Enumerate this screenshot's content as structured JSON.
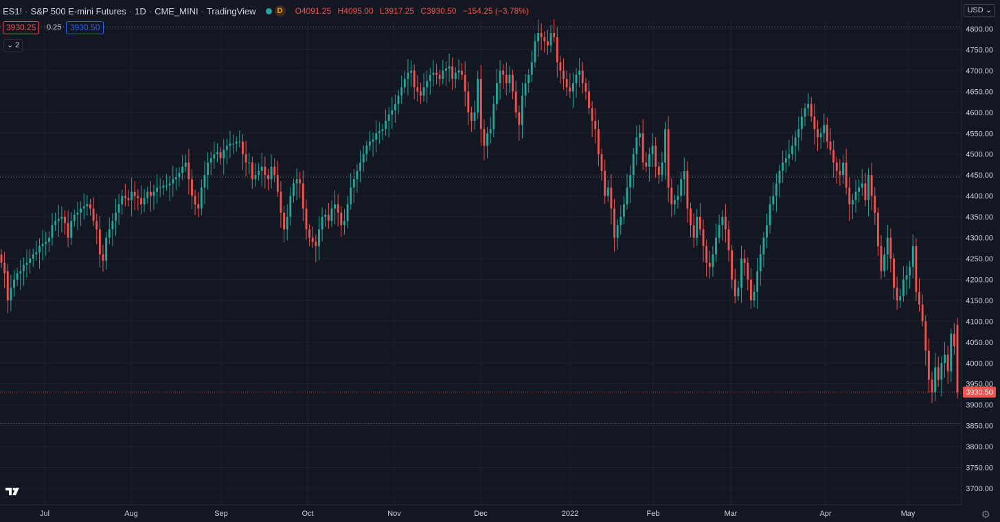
{
  "header": {
    "symbol": "ES1!",
    "name": "S&P 500 E-mini Futures",
    "interval": "1D",
    "exchange": "CME_MINI",
    "source": "TradingView",
    "badge": "D",
    "o_label": "O",
    "o_value": "4091.25",
    "h_label": "H",
    "h_value": "4095.00",
    "l_label": "L",
    "l_value": "3917.25",
    "c_label": "C",
    "c_value": "3930.50",
    "change": "−154.25 (−3.78%)"
  },
  "trade": {
    "bid": "3930.25",
    "spread": "0.25",
    "ask": "3930.50",
    "collapse_label": "2"
  },
  "axis": {
    "currency": "USD"
  },
  "colors": {
    "up": "#26a69a",
    "down": "#ef5350",
    "background": "#131722",
    "grid": "#1e222d"
  },
  "chart_data": {
    "type": "candlestick",
    "y_ticks": [
      "4800.00",
      "4750.00",
      "4700.00",
      "4650.00",
      "4600.00",
      "4550.00",
      "4500.00",
      "4450.00",
      "4400.00",
      "4350.00",
      "4300.00",
      "4250.00",
      "4200.00",
      "4150.00",
      "4100.00",
      "4050.00",
      "4000.00",
      "3950.00",
      "3900.00",
      "3850.00",
      "3800.00",
      "3750.00",
      "3700.00"
    ],
    "x_ticks": [
      "Jul",
      "Aug",
      "Sep",
      "Oct",
      "Nov",
      "Dec",
      "2022",
      "Feb",
      "Mar",
      "Apr",
      "May"
    ],
    "ylim": [
      3680,
      4815
    ],
    "last_price": "3930.50",
    "reference_levels": [
      4805,
      4445,
      3855
    ],
    "closes": [
      4240,
      4215,
      4150,
      4180,
      4200,
      4215,
      4220,
      4235,
      4240,
      4250,
      4260,
      4265,
      4280,
      4285,
      4290,
      4300,
      4330,
      4340,
      4345,
      4350,
      4335,
      4300,
      4340,
      4355,
      4360,
      4370,
      4375,
      4380,
      4370,
      4340,
      4320,
      4260,
      4245,
      4300,
      4320,
      4340,
      4360,
      4380,
      4400,
      4395,
      4390,
      4410,
      4400,
      4395,
      4380,
      4395,
      4410,
      4400,
      4410,
      4420,
      4420,
      4425,
      4425,
      4430,
      4440,
      4445,
      4455,
      4470,
      4480,
      4440,
      4400,
      4380,
      4370,
      4420,
      4450,
      4480,
      4490,
      4500,
      4505,
      4490,
      4510,
      4520,
      4525,
      4525,
      4530,
      4530,
      4500,
      4480,
      4480,
      4440,
      4450,
      4460,
      4470,
      4450,
      4440,
      4470,
      4450,
      4410,
      4360,
      4320,
      4350,
      4400,
      4430,
      4440,
      4430,
      4370,
      4320,
      4300,
      4290,
      4280,
      4320,
      4350,
      4355,
      4340,
      4370,
      4380,
      4360,
      4330,
      4340,
      4380,
      4420,
      4440,
      4460,
      4480,
      4500,
      4520,
      4530,
      4535,
      4550,
      4555,
      4560,
      4580,
      4595,
      4605,
      4620,
      4640,
      4660,
      4680,
      4695,
      4700,
      4660,
      4650,
      4640,
      4660,
      4675,
      4690,
      4695,
      4690,
      4680,
      4700,
      4705,
      4710,
      4680,
      4695,
      4700,
      4690,
      4650,
      4600,
      4580,
      4600,
      4680,
      4560,
      4520,
      4550,
      4560,
      4620,
      4670,
      4700,
      4690,
      4670,
      4690,
      4650,
      4600,
      4570,
      4640,
      4670,
      4690,
      4720,
      4770,
      4790,
      4780,
      4770,
      4760,
      4790,
      4780,
      4720,
      4700,
      4680,
      4660,
      4650,
      4670,
      4690,
      4700,
      4670,
      4650,
      4610,
      4580,
      4560,
      4500,
      4460,
      4400,
      4420,
      4370,
      4300,
      4330,
      4350,
      4380,
      4420,
      4450,
      4500,
      4540,
      4550,
      4480,
      4470,
      4500,
      4520,
      4470,
      4450,
      4480,
      4560,
      4420,
      4380,
      4390,
      4400,
      4440,
      4460,
      4370,
      4330,
      4300,
      4350,
      4320,
      4280,
      4240,
      4230,
      4260,
      4300,
      4330,
      4350,
      4320,
      4270,
      4200,
      4160,
      4180,
      4250,
      4240,
      4200,
      4150,
      4170,
      4220,
      4260,
      4300,
      4330,
      4380,
      4400,
      4430,
      4460,
      4480,
      4490,
      4500,
      4520,
      4540,
      4560,
      4590,
      4610,
      4620,
      4590,
      4560,
      4540,
      4550,
      4570,
      4530,
      4510,
      4480,
      4460,
      4450,
      4480,
      4420,
      4380,
      4390,
      4410,
      4420,
      4430,
      4390,
      4450,
      4400,
      4360,
      4280,
      4220,
      4260,
      4300,
      4250,
      4180,
      4150,
      4160,
      4200,
      4210,
      4230,
      4280,
      4170,
      4140,
      4100,
      4030,
      3960,
      3930,
      3990,
      3960,
      4000,
      4020,
      3980,
      4070,
      4040,
      3930
    ],
    "opens": [
      4260,
      4240,
      4220,
      4150,
      4180,
      4200,
      4215,
      4220,
      4235,
      4240,
      4250,
      4260,
      4265,
      4280,
      4285,
      4290,
      4300,
      4330,
      4340,
      4345,
      4350,
      4335,
      4300,
      4340,
      4355,
      4360,
      4370,
      4375,
      4380,
      4370,
      4340,
      4320,
      4260,
      4245,
      4300,
      4320,
      4340,
      4360,
      4380,
      4400,
      4395,
      4390,
      4410,
      4400,
      4395,
      4380,
      4395,
      4410,
      4400,
      4410,
      4420,
      4420,
      4425,
      4425,
      4430,
      4440,
      4445,
      4455,
      4470,
      4480,
      4440,
      4400,
      4380,
      4370,
      4420,
      4450,
      4480,
      4490,
      4500,
      4505,
      4490,
      4510,
      4520,
      4525,
      4525,
      4530,
      4530,
      4500,
      4480,
      4480,
      4440,
      4450,
      4460,
      4470,
      4450,
      4440,
      4470,
      4450,
      4410,
      4360,
      4320,
      4350,
      4400,
      4430,
      4440,
      4430,
      4370,
      4320,
      4300,
      4290,
      4280,
      4320,
      4350,
      4355,
      4340,
      4370,
      4380,
      4360,
      4330,
      4340,
      4380,
      4420,
      4440,
      4460,
      4480,
      4500,
      4520,
      4530,
      4535,
      4550,
      4555,
      4560,
      4580,
      4595,
      4605,
      4620,
      4640,
      4660,
      4680,
      4695,
      4700,
      4660,
      4650,
      4640,
      4660,
      4675,
      4690,
      4695,
      4690,
      4680,
      4700,
      4705,
      4710,
      4680,
      4695,
      4700,
      4690,
      4650,
      4600,
      4580,
      4600,
      4680,
      4560,
      4520,
      4550,
      4560,
      4620,
      4670,
      4700,
      4690,
      4670,
      4690,
      4650,
      4600,
      4570,
      4640,
      4670,
      4690,
      4720,
      4770,
      4790,
      4780,
      4770,
      4760,
      4790,
      4780,
      4720,
      4700,
      4680,
      4660,
      4650,
      4670,
      4690,
      4700,
      4670,
      4650,
      4610,
      4580,
      4560,
      4500,
      4460,
      4400,
      4420,
      4370,
      4300,
      4330,
      4350,
      4380,
      4420,
      4450,
      4500,
      4540,
      4550,
      4480,
      4470,
      4500,
      4520,
      4470,
      4450,
      4480,
      4560,
      4420,
      4380,
      4390,
      4400,
      4440,
      4460,
      4370,
      4330,
      4300,
      4350,
      4320,
      4280,
      4240,
      4230,
      4260,
      4300,
      4330,
      4350,
      4320,
      4270,
      4200,
      4160,
      4180,
      4250,
      4240,
      4200,
      4150,
      4170,
      4220,
      4260,
      4300,
      4330,
      4380,
      4400,
      4430,
      4460,
      4480,
      4490,
      4500,
      4520,
      4540,
      4560,
      4590,
      4610,
      4620,
      4590,
      4560,
      4540,
      4550,
      4570,
      4530,
      4510,
      4480,
      4460,
      4450,
      4480,
      4420,
      4380,
      4390,
      4410,
      4420,
      4430,
      4390,
      4450,
      4400,
      4360,
      4280,
      4220,
      4260,
      4300,
      4250,
      4180,
      4150,
      4160,
      4200,
      4210,
      4230,
      4280,
      4170,
      4140,
      4100,
      4030,
      3960,
      3930,
      3990,
      3960,
      4000,
      4020,
      3980,
      4070,
      4091.25
    ]
  }
}
